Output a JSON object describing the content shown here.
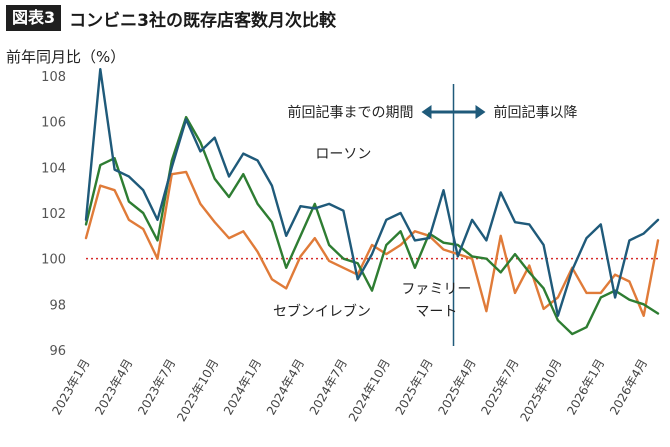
{
  "figure": {
    "badge": "図表3",
    "title": "コンビニ3社の既存店客数月次比較"
  },
  "chart_data": {
    "type": "line",
    "ylabel": "前年同月比（%）",
    "ylim": [
      96,
      108
    ],
    "yticks": [
      96,
      98,
      100,
      102,
      104,
      106,
      108
    ],
    "x": [
      "2023年1月",
      "2023年2月",
      "2023年3月",
      "2023年4月",
      "2023年5月",
      "2023年6月",
      "2023年7月",
      "2023年8月",
      "2023年9月",
      "2023年10月",
      "2023年11月",
      "2023年12月",
      "2024年1月",
      "2024年2月",
      "2024年3月",
      "2024年4月",
      "2024年5月",
      "2024年6月",
      "2024年7月",
      "2024年8月",
      "2024年9月",
      "2024年10月",
      "2024年11月",
      "2024年12月",
      "2025年1月",
      "2025年2月",
      "2025年3月",
      "2025年4月",
      "2025年5月",
      "2025年6月",
      "2025年7月",
      "2025年8月",
      "2025年9月",
      "2025年10月",
      "2025年11月",
      "2025年12月",
      "2026年1月",
      "2026年2月",
      "2026年3月",
      "2026年4月",
      "2026年5月"
    ],
    "xticks": [
      {
        "index": 0,
        "label": "2023年1月"
      },
      {
        "index": 3,
        "label": "2023年4月"
      },
      {
        "index": 6,
        "label": "2023年7月"
      },
      {
        "index": 9,
        "label": "2023年10月"
      },
      {
        "index": 12,
        "label": "2024年1月"
      },
      {
        "index": 15,
        "label": "2024年4月"
      },
      {
        "index": 18,
        "label": "2024年7月"
      },
      {
        "index": 21,
        "label": "2024年10月"
      },
      {
        "index": 24,
        "label": "2025年1月"
      },
      {
        "index": 27,
        "label": "2025年4月"
      },
      {
        "index": 30,
        "label": "2025年7月"
      },
      {
        "index": 33,
        "label": "2025年10月"
      },
      {
        "index": 36,
        "label": "2026年1月"
      },
      {
        "index": 39,
        "label": "2026年4月"
      }
    ],
    "reference_line": {
      "y": 100,
      "color": "#d62b2b"
    },
    "divider": {
      "after_index": 26,
      "left_label": "前回記事までの期間",
      "right_label": "前回記事以降",
      "color": "#1f5a7a"
    },
    "series": [
      {
        "name": "ローソン",
        "color": "#1f5a7a",
        "values": [
          101.7,
          108.3,
          103.9,
          103.6,
          103.0,
          101.7,
          104.0,
          106.1,
          104.7,
          105.3,
          103.6,
          104.6,
          104.3,
          103.2,
          101.0,
          102.3,
          102.2,
          102.4,
          102.1,
          99.1,
          100.2,
          101.7,
          102.0,
          100.8,
          100.9,
          103.0,
          100.1,
          101.7,
          100.8,
          102.9,
          101.6,
          101.5,
          100.6,
          97.5,
          99.5,
          100.9,
          101.5,
          98.3,
          100.8,
          101.1,
          101.7
        ]
      },
      {
        "name": "セブンイレブン",
        "color": "#e07b39",
        "values": [
          100.9,
          103.2,
          103.0,
          101.7,
          101.3,
          100.0,
          103.7,
          103.8,
          102.4,
          101.6,
          100.9,
          101.2,
          100.3,
          99.1,
          98.7,
          100.1,
          100.9,
          99.9,
          99.6,
          99.3,
          100.6,
          100.2,
          100.6,
          101.2,
          101.0,
          100.4,
          100.2,
          100.0,
          97.7,
          101.0,
          98.5,
          99.7,
          97.8,
          98.3,
          99.6,
          98.5,
          98.5,
          99.3,
          99.0,
          97.5,
          100.8
        ]
      },
      {
        "name": "ファミリーマート",
        "color": "#2e7d32",
        "values": [
          101.5,
          104.1,
          104.4,
          102.5,
          102.0,
          100.8,
          104.3,
          106.2,
          105.1,
          103.5,
          102.7,
          103.7,
          102.4,
          101.6,
          99.6,
          101.0,
          102.4,
          100.6,
          100.0,
          99.8,
          98.6,
          100.6,
          101.2,
          99.6,
          101.1,
          100.7,
          100.6,
          100.1,
          100.0,
          99.4,
          100.2,
          99.4,
          98.7,
          97.3,
          96.7,
          97.0,
          98.3,
          98.6,
          98.2,
          98.0,
          97.6
        ]
      }
    ],
    "series_labels": [
      {
        "series": 0,
        "text": "ローソン",
        "at_index": 18,
        "at_y": 104.6
      },
      {
        "series": 1,
        "text": "セブンイレブン",
        "at_index": 16.5,
        "at_y": 97.7
      },
      {
        "series": 2,
        "text": "ファミリー",
        "at_index": 24.5,
        "at_y": 98.7
      },
      {
        "series": 2,
        "text": "マート",
        "at_index": 24.5,
        "at_y": 97.7
      }
    ]
  }
}
